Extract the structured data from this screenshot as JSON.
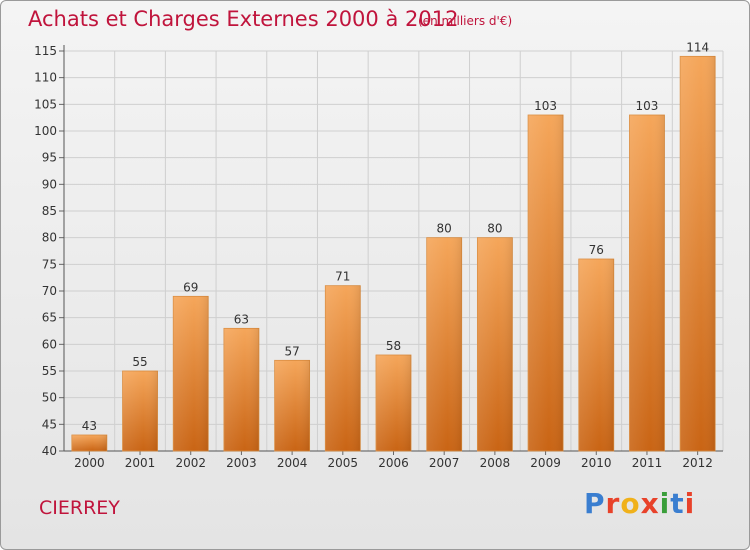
{
  "header": {
    "title": "Achats et Charges Externes 2000 à 2012",
    "unit": "(en milliers d'€)"
  },
  "footer": {
    "town": "CIERREY",
    "logo_letters": [
      "P",
      "r",
      "o",
      "x",
      "i",
      "t",
      "i"
    ]
  },
  "colors": {
    "title": "#c0143c",
    "bar_top": "#f5a65a",
    "bar_bottom": "#c96414",
    "grid": "#cfcfcf",
    "axis_text": "#333333"
  },
  "chart_data": {
    "type": "bar",
    "title": "Achats et Charges Externes 2000 à 2012",
    "unit": "(en milliers d'€)",
    "categories": [
      "2000",
      "2001",
      "2002",
      "2003",
      "2004",
      "2005",
      "2006",
      "2007",
      "2008",
      "2009",
      "2010",
      "2011",
      "2012"
    ],
    "values": [
      43,
      55,
      69,
      63,
      57,
      71,
      58,
      80,
      80,
      103,
      76,
      103,
      114
    ],
    "value_labels": [
      "43",
      "55",
      "69",
      "63",
      "57",
      "71",
      "58",
      "80",
      "80",
      "103",
      "76",
      "103",
      "114"
    ],
    "ylim": [
      40,
      115
    ],
    "yticks": [
      40,
      45,
      50,
      55,
      60,
      65,
      70,
      75,
      80,
      85,
      90,
      95,
      100,
      105,
      110,
      115
    ],
    "ytick_labels": [
      "40",
      "45",
      "50",
      "55",
      "60",
      "65",
      "70",
      "75",
      "80",
      "85",
      "90",
      "95",
      "100",
      "105",
      "110",
      "115"
    ],
    "grid": true,
    "legend": "none"
  }
}
